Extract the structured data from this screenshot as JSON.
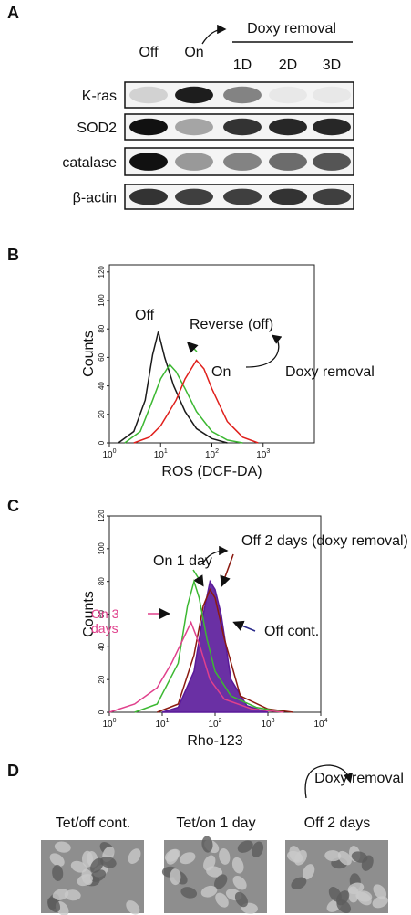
{
  "blot": {
    "label": "A",
    "lanes": [
      "Off",
      "On",
      "1D",
      "2D",
      "3D"
    ],
    "doxy_removal": "Doxy removal",
    "rows": [
      "K-ras",
      "SOD2",
      "catalase",
      "β-actin"
    ]
  },
  "chart_data": [
    {
      "type": "line",
      "panel": "B",
      "x_label": "ROS (DCF-DA)",
      "y_label": "Counts",
      "log_x": true,
      "xlim": [
        1,
        10000
      ],
      "xticks": [
        {
          "value": 1,
          "label": "10",
          "sup": "0"
        },
        {
          "value": 10,
          "label": "10",
          "sup": "1"
        },
        {
          "value": 100,
          "label": "10",
          "sup": "2"
        },
        {
          "value": 1000,
          "label": "10",
          "sup": "3"
        }
      ],
      "ylim": [
        0,
        125
      ],
      "yticks": [
        0,
        20,
        40,
        60,
        80,
        100,
        120
      ],
      "annotation": "Doxy removal",
      "series": [
        {
          "name": "Off",
          "color": "#1a1a1a",
          "x": [
            1.5,
            3,
            5,
            7,
            9,
            12,
            18,
            30,
            50,
            100,
            200
          ],
          "values": [
            0,
            8,
            30,
            62,
            78,
            60,
            40,
            22,
            10,
            3,
            0
          ]
        },
        {
          "name": "Reverse (off)",
          "color": "#3cb832",
          "x": [
            2,
            4,
            7,
            10,
            15,
            20,
            30,
            50,
            100,
            200,
            400
          ],
          "values": [
            0,
            8,
            30,
            45,
            55,
            50,
            38,
            22,
            8,
            2,
            0
          ]
        },
        {
          "name": "On",
          "color": "#e0201c",
          "x": [
            3,
            6,
            10,
            20,
            30,
            50,
            70,
            100,
            200,
            400,
            800
          ],
          "values": [
            0,
            4,
            12,
            30,
            45,
            58,
            52,
            38,
            15,
            4,
            0
          ]
        }
      ]
    },
    {
      "type": "line",
      "panel": "C",
      "x_label": "Rho-123",
      "y_label": "Counts",
      "log_x": true,
      "xlim": [
        1,
        10000
      ],
      "xticks": [
        {
          "value": 1,
          "label": "10",
          "sup": "0"
        },
        {
          "value": 10,
          "label": "10",
          "sup": "1"
        },
        {
          "value": 100,
          "label": "10",
          "sup": "2"
        },
        {
          "value": 1000,
          "label": "10",
          "sup": "3"
        },
        {
          "value": 10000,
          "label": "10",
          "sup": "4"
        }
      ],
      "ylim": [
        0,
        120
      ],
      "yticks": [
        0,
        20,
        40,
        60,
        80,
        100,
        120
      ],
      "series": [
        {
          "name": "Off cont.",
          "color": "#5a1a9a",
          "fill": true,
          "x": [
            10,
            20,
            40,
            60,
            80,
            100,
            130,
            200,
            400,
            1000
          ],
          "values": [
            0,
            3,
            25,
            60,
            80,
            75,
            60,
            20,
            4,
            0
          ]
        },
        {
          "name": "Off 2 days (doxy removal)",
          "color": "#8b1a10",
          "x": [
            8,
            20,
            40,
            60,
            80,
            100,
            150,
            300,
            1000,
            3000
          ],
          "values": [
            0,
            5,
            35,
            65,
            75,
            70,
            45,
            10,
            2,
            0
          ]
        },
        {
          "name": "On 1 day",
          "color": "#3cb832",
          "x": [
            3,
            8,
            20,
            30,
            40,
            50,
            70,
            100,
            200,
            600,
            2000
          ],
          "values": [
            0,
            5,
            30,
            65,
            80,
            70,
            45,
            25,
            10,
            3,
            0
          ]
        },
        {
          "name": "On 3 days",
          "color": "#e0408c",
          "x": [
            1,
            3,
            8,
            15,
            25,
            35,
            50,
            80,
            150,
            500,
            2000
          ],
          "values": [
            0,
            5,
            15,
            30,
            45,
            55,
            42,
            20,
            8,
            2,
            0
          ]
        }
      ]
    }
  ],
  "micrographs": {
    "label": "D",
    "doxy_removal": "Doxy removal",
    "captions": [
      "Tet/off cont.",
      "Tet/on 1 day",
      "Off 2 days"
    ]
  }
}
